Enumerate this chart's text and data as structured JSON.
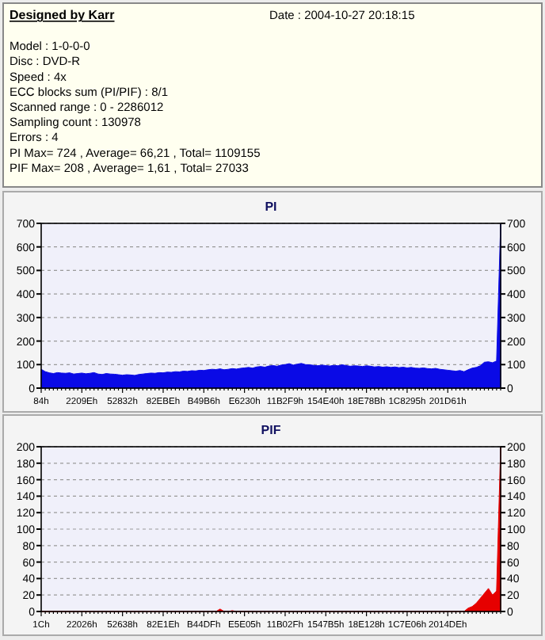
{
  "chart_data": [
    {
      "type": "other",
      "title": "Designed by Karr",
      "annotations": [
        "Date : 2004-10-27 20:18:15",
        "Model : 1-0-0-0",
        "Disc : DVD-R",
        "Speed : 4x",
        "ECC blocks sum (PI/PIF) : 8/1",
        "Scanned range : 0 - 2286012",
        "Sampling count : 130978",
        "Errors : 4",
        "PI Max= 724 , Average= 66,21 , Total= 1109155",
        "PIF Max= 208 , Average= 1,61 , Total= 27033"
      ]
    },
    {
      "type": "area",
      "title": "PI",
      "color": "#0a0ae6",
      "grid": "y",
      "categories": [
        "84h",
        null,
        null,
        null,
        null,
        null,
        null,
        null,
        null,
        null,
        "2209Eh",
        null,
        null,
        null,
        null,
        null,
        null,
        null,
        null,
        null,
        "52832h",
        null,
        null,
        null,
        null,
        null,
        null,
        null,
        null,
        null,
        "82EBEh",
        null,
        null,
        null,
        null,
        null,
        null,
        null,
        null,
        null,
        "B49B6h",
        null,
        null,
        null,
        null,
        null,
        null,
        null,
        null,
        null,
        "E6230h",
        null,
        null,
        null,
        null,
        null,
        null,
        null,
        null,
        null,
        "11B2F9h",
        null,
        null,
        null,
        null,
        null,
        null,
        null,
        null,
        null,
        "154E40h",
        null,
        null,
        null,
        null,
        null,
        null,
        null,
        null,
        null,
        "18E78Bh",
        null,
        null,
        null,
        null,
        null,
        null,
        null,
        null,
        null,
        "1C8295h",
        null,
        null,
        null,
        null,
        null,
        null,
        null,
        null,
        null,
        "201D61h",
        null,
        null,
        null,
        null,
        null,
        null,
        null,
        null,
        null,
        null,
        null,
        null,
        null
      ],
      "values": [
        80,
        70,
        65,
        62,
        66,
        64,
        63,
        65,
        60,
        62,
        64,
        61,
        63,
        66,
        60,
        58,
        62,
        60,
        59,
        57,
        55,
        57,
        56,
        54,
        58,
        60,
        62,
        64,
        63,
        66,
        65,
        68,
        67,
        70,
        69,
        72,
        71,
        74,
        73,
        76,
        75,
        78,
        80,
        79,
        82,
        78,
        80,
        83,
        81,
        84,
        86,
        88,
        85,
        90,
        92,
        89,
        94,
        96,
        93,
        98,
        100,
        104,
        98,
        102,
        105,
        100,
        99,
        97,
        95,
        98,
        96,
        94,
        97,
        95,
        99,
        96,
        93,
        95,
        94,
        92,
        95,
        93,
        90,
        92,
        89,
        91,
        88,
        90,
        87,
        89,
        86,
        88,
        85,
        84,
        86,
        83,
        82,
        84,
        80,
        78,
        76,
        74,
        72,
        75,
        70,
        78,
        85,
        88,
        95,
        110,
        112,
        108,
        115,
        700
      ],
      "ylim": [
        0,
        700
      ],
      "yticks": [
        0,
        100,
        200,
        300,
        400,
        500,
        600,
        700
      ],
      "y2lim": [
        0,
        700
      ],
      "y2ticks": [
        0,
        100,
        200,
        300,
        400,
        500,
        600,
        700
      ]
    },
    {
      "type": "area",
      "title": "PIF",
      "color": "#e60000",
      "grid": "y",
      "categories": [
        "1Ch",
        null,
        null,
        null,
        null,
        null,
        null,
        null,
        null,
        null,
        "22026h",
        null,
        null,
        null,
        null,
        null,
        null,
        null,
        null,
        null,
        "52638h",
        null,
        null,
        null,
        null,
        null,
        null,
        null,
        null,
        null,
        "82E1Eh",
        null,
        null,
        null,
        null,
        null,
        null,
        null,
        null,
        null,
        "B44DFh",
        null,
        null,
        null,
        null,
        null,
        null,
        null,
        null,
        null,
        "E5E05h",
        null,
        null,
        null,
        null,
        null,
        null,
        null,
        null,
        null,
        "11B02Fh",
        null,
        null,
        null,
        null,
        null,
        null,
        null,
        null,
        null,
        "1547B5h",
        null,
        null,
        null,
        null,
        null,
        null,
        null,
        null,
        null,
        "18E128h",
        null,
        null,
        null,
        null,
        null,
        null,
        null,
        null,
        null,
        "1C7E06h",
        null,
        null,
        null,
        null,
        null,
        null,
        null,
        null,
        null,
        "2014DEh",
        null,
        null,
        null,
        null,
        null,
        null,
        null,
        null,
        null,
        null,
        null,
        null,
        null
      ],
      "values": [
        0,
        0,
        0,
        0,
        0,
        0,
        0,
        0,
        0,
        0,
        0,
        0,
        0,
        0,
        0,
        0,
        0,
        0,
        0,
        0,
        0,
        0,
        0,
        0,
        0,
        0,
        0,
        0,
        0,
        0,
        0,
        0,
        0,
        0,
        0,
        0,
        0,
        0,
        0,
        0,
        0,
        0,
        0,
        0,
        3,
        0,
        0,
        1,
        0,
        0,
        0,
        0,
        0,
        0,
        0,
        0,
        0,
        0,
        0,
        0,
        0,
        0,
        0,
        0,
        0,
        0,
        0,
        0,
        0,
        0,
        0,
        0,
        0,
        0,
        0,
        0,
        0,
        0,
        0,
        0,
        0,
        0,
        0,
        0,
        0,
        0,
        0,
        0,
        0,
        0,
        0,
        0,
        0,
        0,
        0,
        0,
        0,
        0,
        0,
        0,
        0,
        0,
        0,
        0,
        0,
        4,
        6,
        10,
        16,
        22,
        28,
        20,
        25,
        200
      ],
      "ylim": [
        0,
        200
      ],
      "yticks": [
        0,
        20,
        40,
        60,
        80,
        100,
        120,
        140,
        160,
        180,
        200
      ],
      "y2lim": [
        0,
        200
      ],
      "y2ticks": [
        0,
        20,
        40,
        60,
        80,
        100,
        120,
        140,
        160,
        180,
        200
      ]
    }
  ]
}
